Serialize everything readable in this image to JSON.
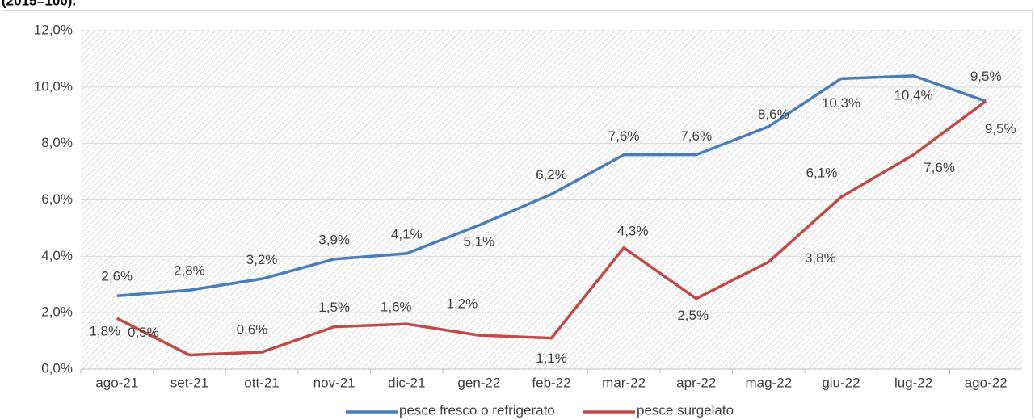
{
  "subtitle": "(2015=100).",
  "chart_data": {
    "type": "line",
    "categories": [
      "ago-21",
      "set-21",
      "ott-21",
      "nov-21",
      "dic-21",
      "gen-22",
      "feb-22",
      "mar-22",
      "apr-22",
      "mag-22",
      "giu-22",
      "lug-22",
      "ago-22"
    ],
    "series": [
      {
        "name": "pesce fresco o refrigerato",
        "color": "#4a7ebb",
        "values": [
          2.6,
          2.8,
          3.2,
          3.9,
          4.1,
          5.1,
          6.2,
          7.6,
          7.6,
          8.6,
          10.3,
          10.4,
          9.5
        ],
        "value_labels": [
          "2,6%",
          "2,8%",
          "3,2%",
          "3,9%",
          "4,1%",
          "5,1%",
          "6,2%",
          "7,6%",
          "7,6%",
          "8,6%",
          "10,3%",
          "10,4%",
          "9,5%"
        ]
      },
      {
        "name": "pesce surgelato",
        "color": "#be4b48",
        "values": [
          1.8,
          0.5,
          0.6,
          1.5,
          1.6,
          1.2,
          1.1,
          4.3,
          2.5,
          3.8,
          6.1,
          7.6,
          9.5
        ],
        "value_labels": [
          "1,8%",
          "0,5%",
          "0,6%",
          "1,5%",
          "1,6%",
          "1,2%",
          "1,1%",
          "4,3%",
          "2,5%",
          "3,8%",
          "6,1%",
          "7,6%",
          "9,5%"
        ]
      }
    ],
    "ylim": [
      0,
      12
    ],
    "yticks": [
      {
        "value": 0,
        "label": "0,0%"
      },
      {
        "value": 2,
        "label": "2,0%"
      },
      {
        "value": 4,
        "label": "4,0%"
      },
      {
        "value": 6,
        "label": "6,0%"
      },
      {
        "value": 8,
        "label": "8,0%"
      },
      {
        "value": 10,
        "label": "10,0%"
      },
      {
        "value": 12,
        "label": "12,0%"
      }
    ],
    "grid": true,
    "legend": "bottom"
  }
}
